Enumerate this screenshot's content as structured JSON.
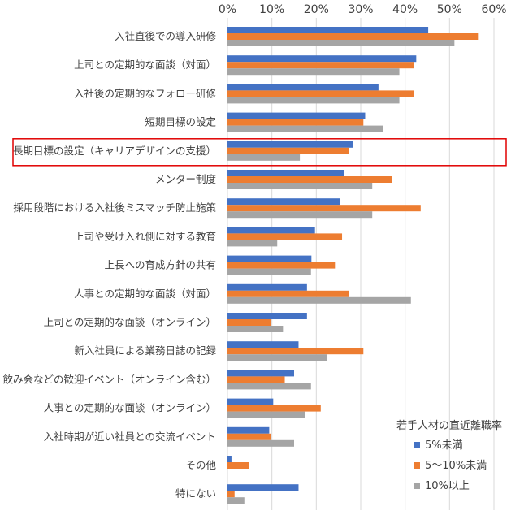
{
  "chart_data": {
    "type": "bar",
    "orientation": "horizontal",
    "xlim": [
      0,
      60
    ],
    "x_ticks": [
      "0%",
      "10%",
      "20%",
      "30%",
      "40%",
      "50%",
      "60%"
    ],
    "x_tick_values": [
      0,
      10,
      20,
      30,
      40,
      50,
      60
    ],
    "x_axis_position": "top",
    "grid": true,
    "categories": [
      "入社直後での導入研修",
      "上司との定期的な面談（対面）",
      "入社後の定期的なフォロー研修",
      "短期目標の設定",
      "長期目標の設定（キャリアデザインの支援）",
      "メンター制度",
      "採用段階における入社後ミスマッチ防止施策",
      "上司や受け入れ側に対する教育",
      "上長への育成方針の共有",
      "人事との定期的な面談（対面）",
      "上司との定期的な面談（オンライン）",
      "新入社員による業務日誌の記録",
      "飲み会などの歓迎イベント（オンライン含む）",
      "人事との定期的な面談（オンライン）",
      "入社時期が近い社員との交流イベント",
      "その他",
      "特にない"
    ],
    "series": [
      {
        "name": "5%未満",
        "color": "#4472C4",
        "values": [
          45.2,
          42.5,
          34.0,
          31.0,
          28.2,
          26.2,
          25.4,
          19.7,
          18.9,
          17.9,
          17.9,
          16.0,
          15.0,
          10.3,
          9.4,
          0.9,
          16.0
        ]
      },
      {
        "name": "5〜10%未満",
        "color": "#ED7D31",
        "values": [
          56.4,
          41.9,
          41.9,
          30.6,
          27.4,
          37.1,
          43.5,
          25.8,
          24.2,
          27.4,
          9.7,
          30.6,
          12.9,
          21.0,
          9.7,
          4.8,
          1.6
        ]
      },
      {
        "name": "10%以上",
        "color": "#A5A5A5",
        "values": [
          51.1,
          38.7,
          38.7,
          35.0,
          16.3,
          32.6,
          32.6,
          11.2,
          18.8,
          41.3,
          12.5,
          22.5,
          18.8,
          17.5,
          15.0,
          0,
          3.8
        ]
      }
    ],
    "highlighted_category": "長期目標の設定（キャリアデザインの支援）",
    "highlight_color": "#E00000",
    "legend": {
      "title": "若手人材の直近離職率",
      "position": "bottom-right"
    }
  }
}
